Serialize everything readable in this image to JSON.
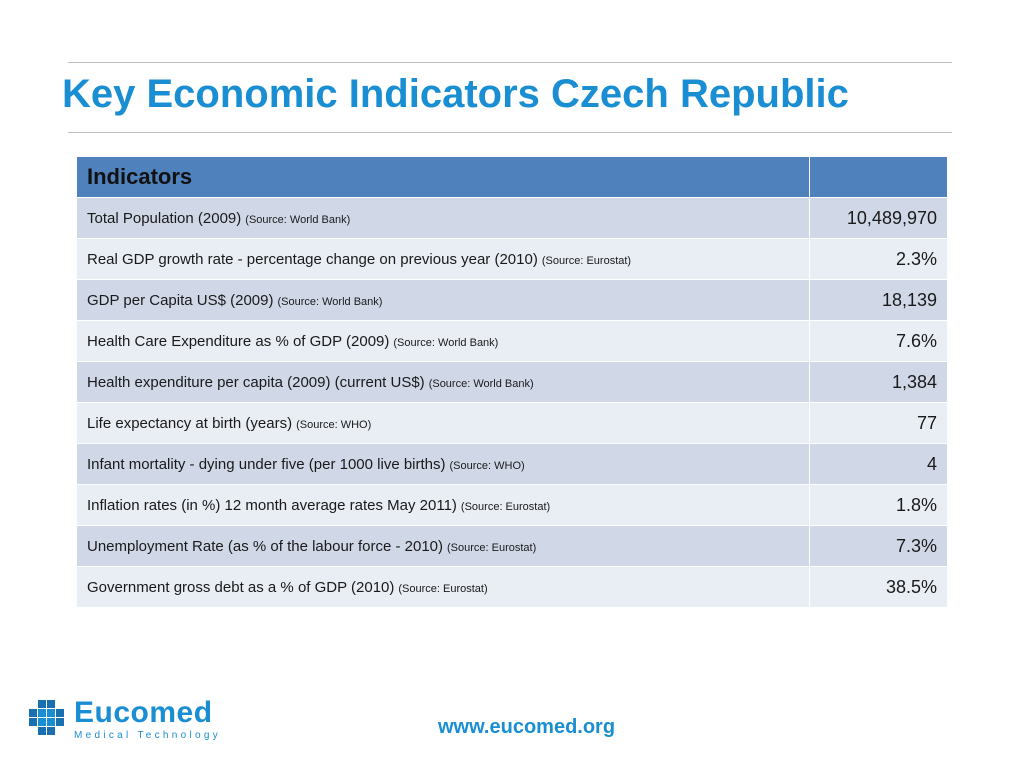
{
  "slide": {
    "title": "Key Economic Indicators Czech Republic",
    "website": "www.eucomed.org"
  },
  "logo": {
    "name": "Eucomed",
    "tagline": "Medical Technology"
  },
  "table": {
    "header": {
      "label": "Indicators",
      "value": ""
    },
    "rows": [
      {
        "label": "Total Population (2009)",
        "source": "(Source: World Bank)",
        "value": "10,489,970"
      },
      {
        "label": "Real GDP growth rate -  percentage change on previous year (2010)",
        "source": "(Source: Eurostat)",
        "value": "2.3%"
      },
      {
        "label": "GDP per Capita US$ (2009)",
        "source": "(Source: World Bank)",
        "value": "18,139"
      },
      {
        "label": "Health Care Expenditure as % of GDP (2009)",
        "source": "(Source: World Bank)",
        "value": "7.6%"
      },
      {
        "label": "Health expenditure per capita (2009) (current US$)",
        "source": "(Source: World Bank)",
        "value": "1,384"
      },
      {
        "label": "Life expectancy at birth (years)",
        "source": "(Source: WHO)",
        "value": "77"
      },
      {
        "label": "Infant mortality - dying under five (per 1000 live births)",
        "source": "(Source: WHO)",
        "value": "4"
      },
      {
        "label": "Inflation rates (in %) 12 month average rates May 2011)",
        "source": "(Source: Eurostat)",
        "value": "1.8%"
      },
      {
        "label": "Unemployment Rate (as % of the labour force - 2010)",
        "source": "(Source: Eurostat)",
        "value": "7.3%"
      },
      {
        "label": "Government gross debt as a % of GDP (2010)",
        "source": "(Source: Eurostat)",
        "value": "38.5%"
      }
    ]
  },
  "colors": {
    "accent": "#1a8ed3",
    "header_bg": "#4f81bd",
    "row_odd": "#d0d8e8",
    "row_even": "#e9edf4"
  }
}
